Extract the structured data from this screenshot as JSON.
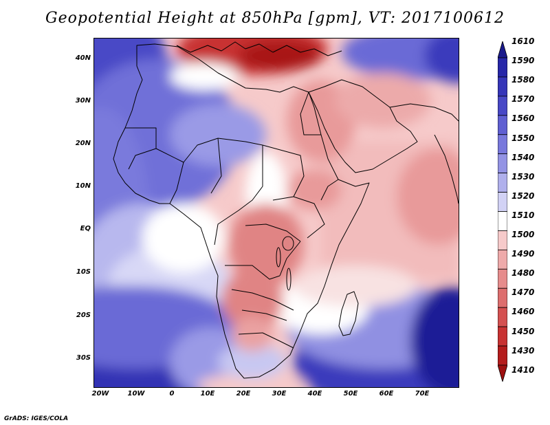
{
  "title": "Geopotential Height at 850hPa [gpm], VT: 2017100612",
  "footer": "GrADS: IGES/COLA",
  "latitude_labels": [
    "40N",
    "30N",
    "20N",
    "10N",
    "EQ",
    "10S",
    "20S",
    "30S"
  ],
  "longitude_labels": [
    "20W",
    "10W",
    "0",
    "10E",
    "20E",
    "30E",
    "40E",
    "50E",
    "60E",
    "70E"
  ],
  "colorbar": {
    "levels": [
      "1610",
      "1590",
      "1580",
      "1570",
      "1560",
      "1550",
      "1540",
      "1530",
      "1520",
      "1510",
      "1500",
      "1490",
      "1480",
      "1470",
      "1460",
      "1450",
      "1430",
      "1410"
    ],
    "colors": [
      "#1a1a8c",
      "#2626a8",
      "#3535b8",
      "#4848c6",
      "#5f5fd2",
      "#7878dc",
      "#9393e4",
      "#b0b0ec",
      "#d2d2f5",
      "#ffffff",
      "#f6caca",
      "#eeaaaa",
      "#e68c8c",
      "#dd6e6e",
      "#d45050",
      "#c83232",
      "#b41c1c",
      "#9e1010"
    ]
  }
}
